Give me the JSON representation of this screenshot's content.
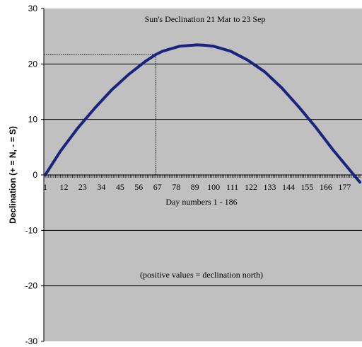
{
  "chart_data": {
    "type": "line",
    "title": "Sun's Declination 21 Mar to 23 Sep",
    "xlabel": "Day numbers 1 - 186",
    "ylabel": "Declination (+ = N, - = S)",
    "annotation": "(positive values = declination north)",
    "ylim": [
      -30,
      30
    ],
    "yticks": [
      -30,
      -20,
      -10,
      0,
      10,
      20,
      30
    ],
    "xlim": [
      1,
      186
    ],
    "xtick_labels": [
      "1",
      "12",
      "23",
      "34",
      "45",
      "56",
      "67",
      "78",
      "89",
      "100",
      "111",
      "122",
      "133",
      "144",
      "155",
      "166",
      "177"
    ],
    "grid": "horizontal major gridlines",
    "series": [
      {
        "color": "#1a237e",
        "x": [
          1,
          10,
          20,
          30,
          40,
          50,
          60,
          66,
          70,
          80,
          90,
          94,
          100,
          110,
          120,
          130,
          140,
          150,
          160,
          170,
          180,
          186
        ],
        "y": [
          0.0,
          4.3,
          8.4,
          12.0,
          15.3,
          18.1,
          20.5,
          21.7,
          22.3,
          23.2,
          23.44,
          23.4,
          23.2,
          22.3,
          20.7,
          18.6,
          15.7,
          12.3,
          8.6,
          4.6,
          0.9,
          -1.3
        ]
      }
    ],
    "reference_point": {
      "x": 66,
      "y": 21.7
    },
    "background": "#c0c0c0",
    "line_color": "#1a237e"
  }
}
